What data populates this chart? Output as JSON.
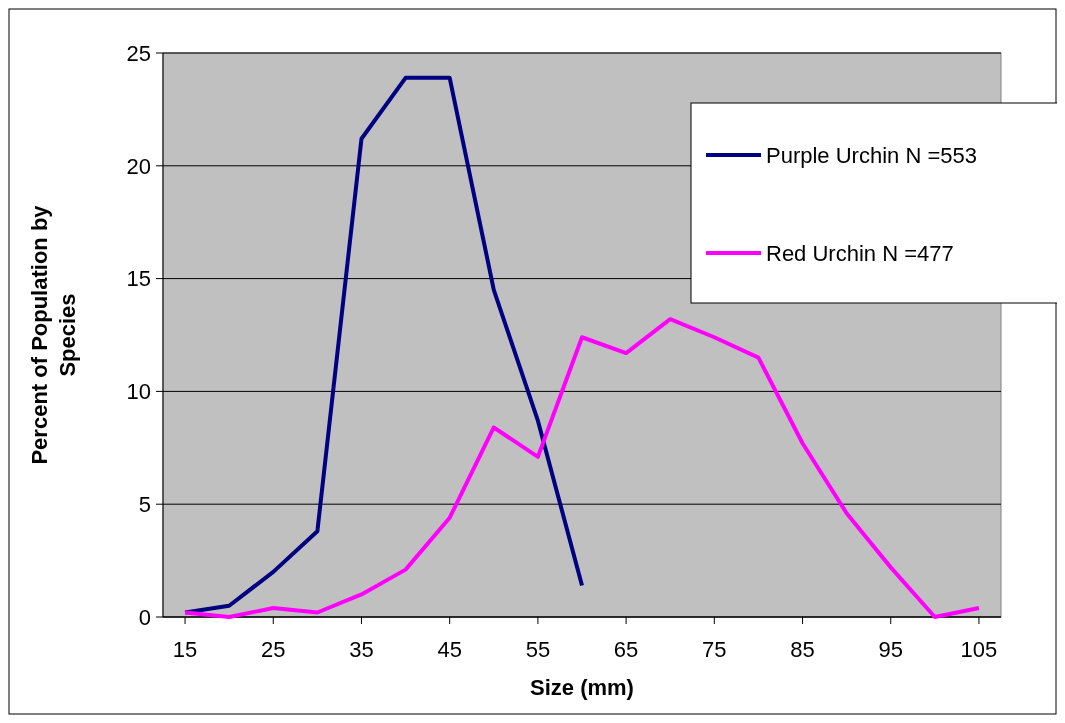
{
  "chart_data": {
    "type": "line",
    "xlabel": "Size (mm)",
    "ylabel": "Percent of Population by Species",
    "xlim": [
      12.5,
      107.5
    ],
    "xticks": [
      15,
      25,
      35,
      45,
      55,
      65,
      75,
      85,
      95,
      105
    ],
    "ylim": [
      0,
      25
    ],
    "yticks": [
      0,
      5,
      10,
      15,
      20,
      25
    ],
    "grid": "y",
    "legend": "top right",
    "marker": "none",
    "line_style": "solid",
    "series": [
      {
        "name": "Purple Urchin N =553",
        "color": "#000080",
        "x": [
          15,
          20,
          25,
          30,
          35,
          40,
          45,
          50,
          55,
          60
        ],
        "values": [
          0.2,
          0.5,
          2.0,
          3.8,
          21.2,
          23.9,
          23.9,
          14.5,
          8.7,
          1.4
        ]
      },
      {
        "name": "Red Urchin N =477",
        "color": "#ff00ff",
        "x": [
          15,
          20,
          25,
          30,
          35,
          40,
          45,
          50,
          55,
          60,
          65,
          70,
          75,
          80,
          85,
          90,
          95,
          100,
          105
        ],
        "values": [
          0.2,
          0,
          0.4,
          0.2,
          1.0,
          2.1,
          4.4,
          8.4,
          7.1,
          12.4,
          11.7,
          13.2,
          12.4,
          11.5,
          7.7,
          4.6,
          2.2,
          0,
          0.4
        ]
      }
    ]
  }
}
